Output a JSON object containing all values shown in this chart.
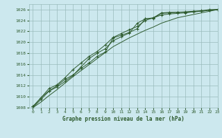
{
  "title": "Graphe pression niveau de la mer (hPa)",
  "background_color": "#cce8ee",
  "grid_color": "#99bbbb",
  "line_color": "#2d5a2d",
  "xlim": [
    -0.5,
    23
  ],
  "ylim": [
    1008,
    1027
  ],
  "xticks": [
    0,
    1,
    2,
    3,
    4,
    5,
    6,
    7,
    8,
    9,
    10,
    11,
    12,
    13,
    14,
    15,
    16,
    17,
    18,
    19,
    20,
    21,
    22,
    23
  ],
  "yticks": [
    1008,
    1010,
    1012,
    1014,
    1016,
    1018,
    1020,
    1022,
    1024,
    1026
  ],
  "line1_marked": [
    1008.2,
    1009.8,
    1011.1,
    1012.0,
    1013.2,
    1014.0,
    1015.2,
    1016.2,
    1017.4,
    1018.2,
    1020.8,
    1021.3,
    1021.8,
    1022.5,
    1024.3,
    1024.4,
    1025.3,
    1025.4,
    1025.5,
    1025.5,
    1025.6,
    1025.7,
    1025.9,
    1026.0
  ],
  "line2_marked": [
    1008.2,
    1009.8,
    1011.5,
    1012.2,
    1013.5,
    1015.0,
    1016.2,
    1017.4,
    1018.3,
    1019.5,
    1020.9,
    1021.6,
    1022.3,
    1022.9,
    1024.0,
    1024.5,
    1025.4,
    1025.5,
    1025.5,
    1025.6,
    1025.7,
    1025.8,
    1026.0,
    1026.0
  ],
  "line3_marked": [
    1008.0,
    1009.5,
    1011.0,
    1011.8,
    1012.8,
    1013.9,
    1015.5,
    1017.0,
    1018.0,
    1018.8,
    1020.3,
    1021.0,
    1021.7,
    1023.5,
    1024.3,
    1024.5,
    1025.0,
    1025.2,
    1025.3,
    1025.4,
    1025.6,
    1025.7,
    1025.9,
    1026.0
  ],
  "line4_smooth": [
    1008.0,
    1009.0,
    1010.2,
    1011.3,
    1012.5,
    1013.7,
    1014.8,
    1015.9,
    1017.0,
    1018.1,
    1019.2,
    1020.0,
    1020.8,
    1021.5,
    1022.2,
    1022.8,
    1023.5,
    1024.0,
    1024.5,
    1024.8,
    1025.1,
    1025.4,
    1025.7,
    1026.0
  ]
}
